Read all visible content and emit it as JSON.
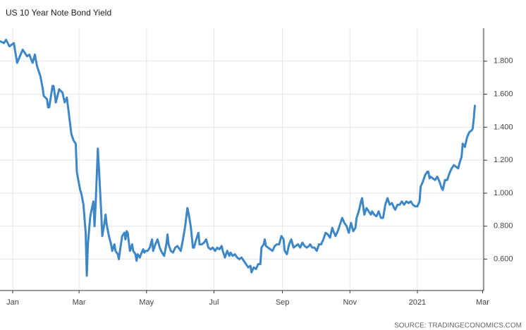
{
  "chart_data": {
    "type": "line",
    "title": "US 10 Year Note Bond Yield",
    "source": "SOURCE: TRADINGECONOMICS.COM",
    "color": "#3d87c7",
    "grid": true,
    "xlim": [
      -11.5,
      426
    ],
    "xticks": [
      {
        "value": 0,
        "label": "Jan"
      },
      {
        "value": 60,
        "label": "Mar"
      },
      {
        "value": 121,
        "label": "May"
      },
      {
        "value": 182,
        "label": "Jul"
      },
      {
        "value": 244,
        "label": "Sep"
      },
      {
        "value": 305,
        "label": "Nov"
      },
      {
        "value": 366,
        "label": "2021"
      },
      {
        "value": 425,
        "label": "Mar"
      }
    ],
    "ylim": [
      0.41,
      2.0
    ],
    "yticks": [
      {
        "value": 0.6,
        "label": "0.600"
      },
      {
        "value": 0.8,
        "label": "0.800"
      },
      {
        "value": 1.0,
        "label": "1.000"
      },
      {
        "value": 1.2,
        "label": "1.200"
      },
      {
        "value": 1.4,
        "label": "1.400"
      },
      {
        "value": 1.6,
        "label": "1.600"
      },
      {
        "value": 1.8,
        "label": "1.800"
      }
    ],
    "x": [
      -11,
      -8,
      -6,
      -3,
      1,
      4,
      9,
      13,
      15,
      18,
      20,
      22,
      25,
      27,
      28,
      31,
      32,
      33,
      36,
      37,
      39,
      42,
      45,
      47,
      49,
      51,
      53,
      55,
      57,
      58,
      59,
      61,
      62,
      64,
      66,
      67,
      68,
      70,
      71,
      73,
      74,
      75,
      77,
      78,
      80,
      81,
      83,
      84,
      85,
      87,
      89,
      90,
      92,
      93,
      95,
      96,
      97,
      99,
      101,
      102,
      103,
      104,
      106,
      108,
      109,
      111,
      112,
      113,
      115,
      116,
      118,
      119,
      120,
      122,
      124,
      126,
      127,
      129,
      131,
      133,
      135,
      137,
      139,
      140,
      141,
      143,
      145,
      147,
      149,
      150,
      152,
      154,
      156,
      158,
      159,
      161,
      163,
      164,
      166,
      168,
      169,
      171,
      173,
      175,
      177,
      179,
      181,
      183,
      185,
      187,
      189,
      190,
      192,
      194,
      196,
      197,
      199,
      201,
      203,
      205,
      207,
      209,
      211,
      213,
      215,
      216,
      218,
      220,
      222,
      224,
      225,
      227,
      228,
      229,
      231,
      233,
      235,
      237,
      239,
      241,
      243,
      245,
      246,
      248,
      250,
      252,
      254,
      256,
      258,
      260,
      262,
      264,
      266,
      268,
      269,
      271,
      273,
      275,
      277,
      279,
      281,
      283,
      285,
      287,
      289,
      290,
      292,
      294,
      296,
      298,
      300,
      302,
      304,
      306,
      308,
      310,
      311,
      313,
      315,
      316,
      318,
      320,
      322,
      324,
      325,
      327,
      329,
      331,
      333,
      335,
      337,
      339,
      341,
      343,
      345,
      346,
      348,
      350,
      352,
      354,
      356,
      358,
      360,
      362,
      364,
      366,
      368,
      369,
      371,
      373,
      375,
      376,
      377,
      378,
      380,
      382,
      384,
      386,
      388,
      389,
      391,
      393,
      395,
      397,
      399,
      401,
      403,
      404,
      406,
      407,
      409,
      411,
      413,
      415,
      416,
      417,
      418
    ],
    "values": [
      1.92,
      1.91,
      1.93,
      1.89,
      1.91,
      1.79,
      1.87,
      1.83,
      1.84,
      1.79,
      1.84,
      1.77,
      1.71,
      1.64,
      1.59,
      1.57,
      1.52,
      1.52,
      1.65,
      1.65,
      1.55,
      1.63,
      1.61,
      1.55,
      1.58,
      1.47,
      1.36,
      1.32,
      1.3,
      1.13,
      1.09,
      1.02,
      1.0,
      0.93,
      0.76,
      0.5,
      0.69,
      0.85,
      0.89,
      0.95,
      0.8,
      0.93,
      1.27,
      1.15,
      0.89,
      0.74,
      0.82,
      0.87,
      0.81,
      0.74,
      0.69,
      0.65,
      0.69,
      0.65,
      0.63,
      0.6,
      0.65,
      0.74,
      0.76,
      0.72,
      0.77,
      0.76,
      0.65,
      0.69,
      0.65,
      0.63,
      0.59,
      0.63,
      0.61,
      0.63,
      0.66,
      0.64,
      0.65,
      0.65,
      0.67,
      0.72,
      0.65,
      0.69,
      0.72,
      0.67,
      0.64,
      0.62,
      0.69,
      0.75,
      0.69,
      0.65,
      0.64,
      0.67,
      0.68,
      0.67,
      0.65,
      0.72,
      0.8,
      0.91,
      0.88,
      0.8,
      0.67,
      0.67,
      0.72,
      0.76,
      0.69,
      0.69,
      0.7,
      0.72,
      0.67,
      0.66,
      0.67,
      0.65,
      0.67,
      0.66,
      0.68,
      0.65,
      0.61,
      0.65,
      0.62,
      0.64,
      0.62,
      0.63,
      0.61,
      0.6,
      0.61,
      0.59,
      0.57,
      0.55,
      0.56,
      0.52,
      0.55,
      0.54,
      0.57,
      0.57,
      0.67,
      0.69,
      0.72,
      0.68,
      0.67,
      0.66,
      0.65,
      0.68,
      0.69,
      0.69,
      0.74,
      0.72,
      0.65,
      0.63,
      0.69,
      0.72,
      0.67,
      0.68,
      0.69,
      0.67,
      0.7,
      0.68,
      0.67,
      0.68,
      0.69,
      0.67,
      0.67,
      0.65,
      0.69,
      0.69,
      0.72,
      0.76,
      0.75,
      0.73,
      0.79,
      0.77,
      0.74,
      0.77,
      0.81,
      0.85,
      0.82,
      0.8,
      0.76,
      0.82,
      0.77,
      0.79,
      0.85,
      0.89,
      0.95,
      0.97,
      0.87,
      0.91,
      0.89,
      0.87,
      0.89,
      0.87,
      0.86,
      0.89,
      0.85,
      0.85,
      0.93,
      0.97,
      0.93,
      0.94,
      0.91,
      0.9,
      0.93,
      0.93,
      0.95,
      0.93,
      0.95,
      0.94,
      0.95,
      0.93,
      0.92,
      0.92,
      0.95,
      1.04,
      1.07,
      1.11,
      1.13,
      1.13,
      1.09,
      1.1,
      1.09,
      1.08,
      1.1,
      1.07,
      1.03,
      1.02,
      1.08,
      1.08,
      1.12,
      1.15,
      1.17,
      1.16,
      1.15,
      1.18,
      1.22,
      1.3,
      1.28,
      1.34,
      1.37,
      1.38,
      1.39,
      1.45,
      1.53
    ]
  }
}
